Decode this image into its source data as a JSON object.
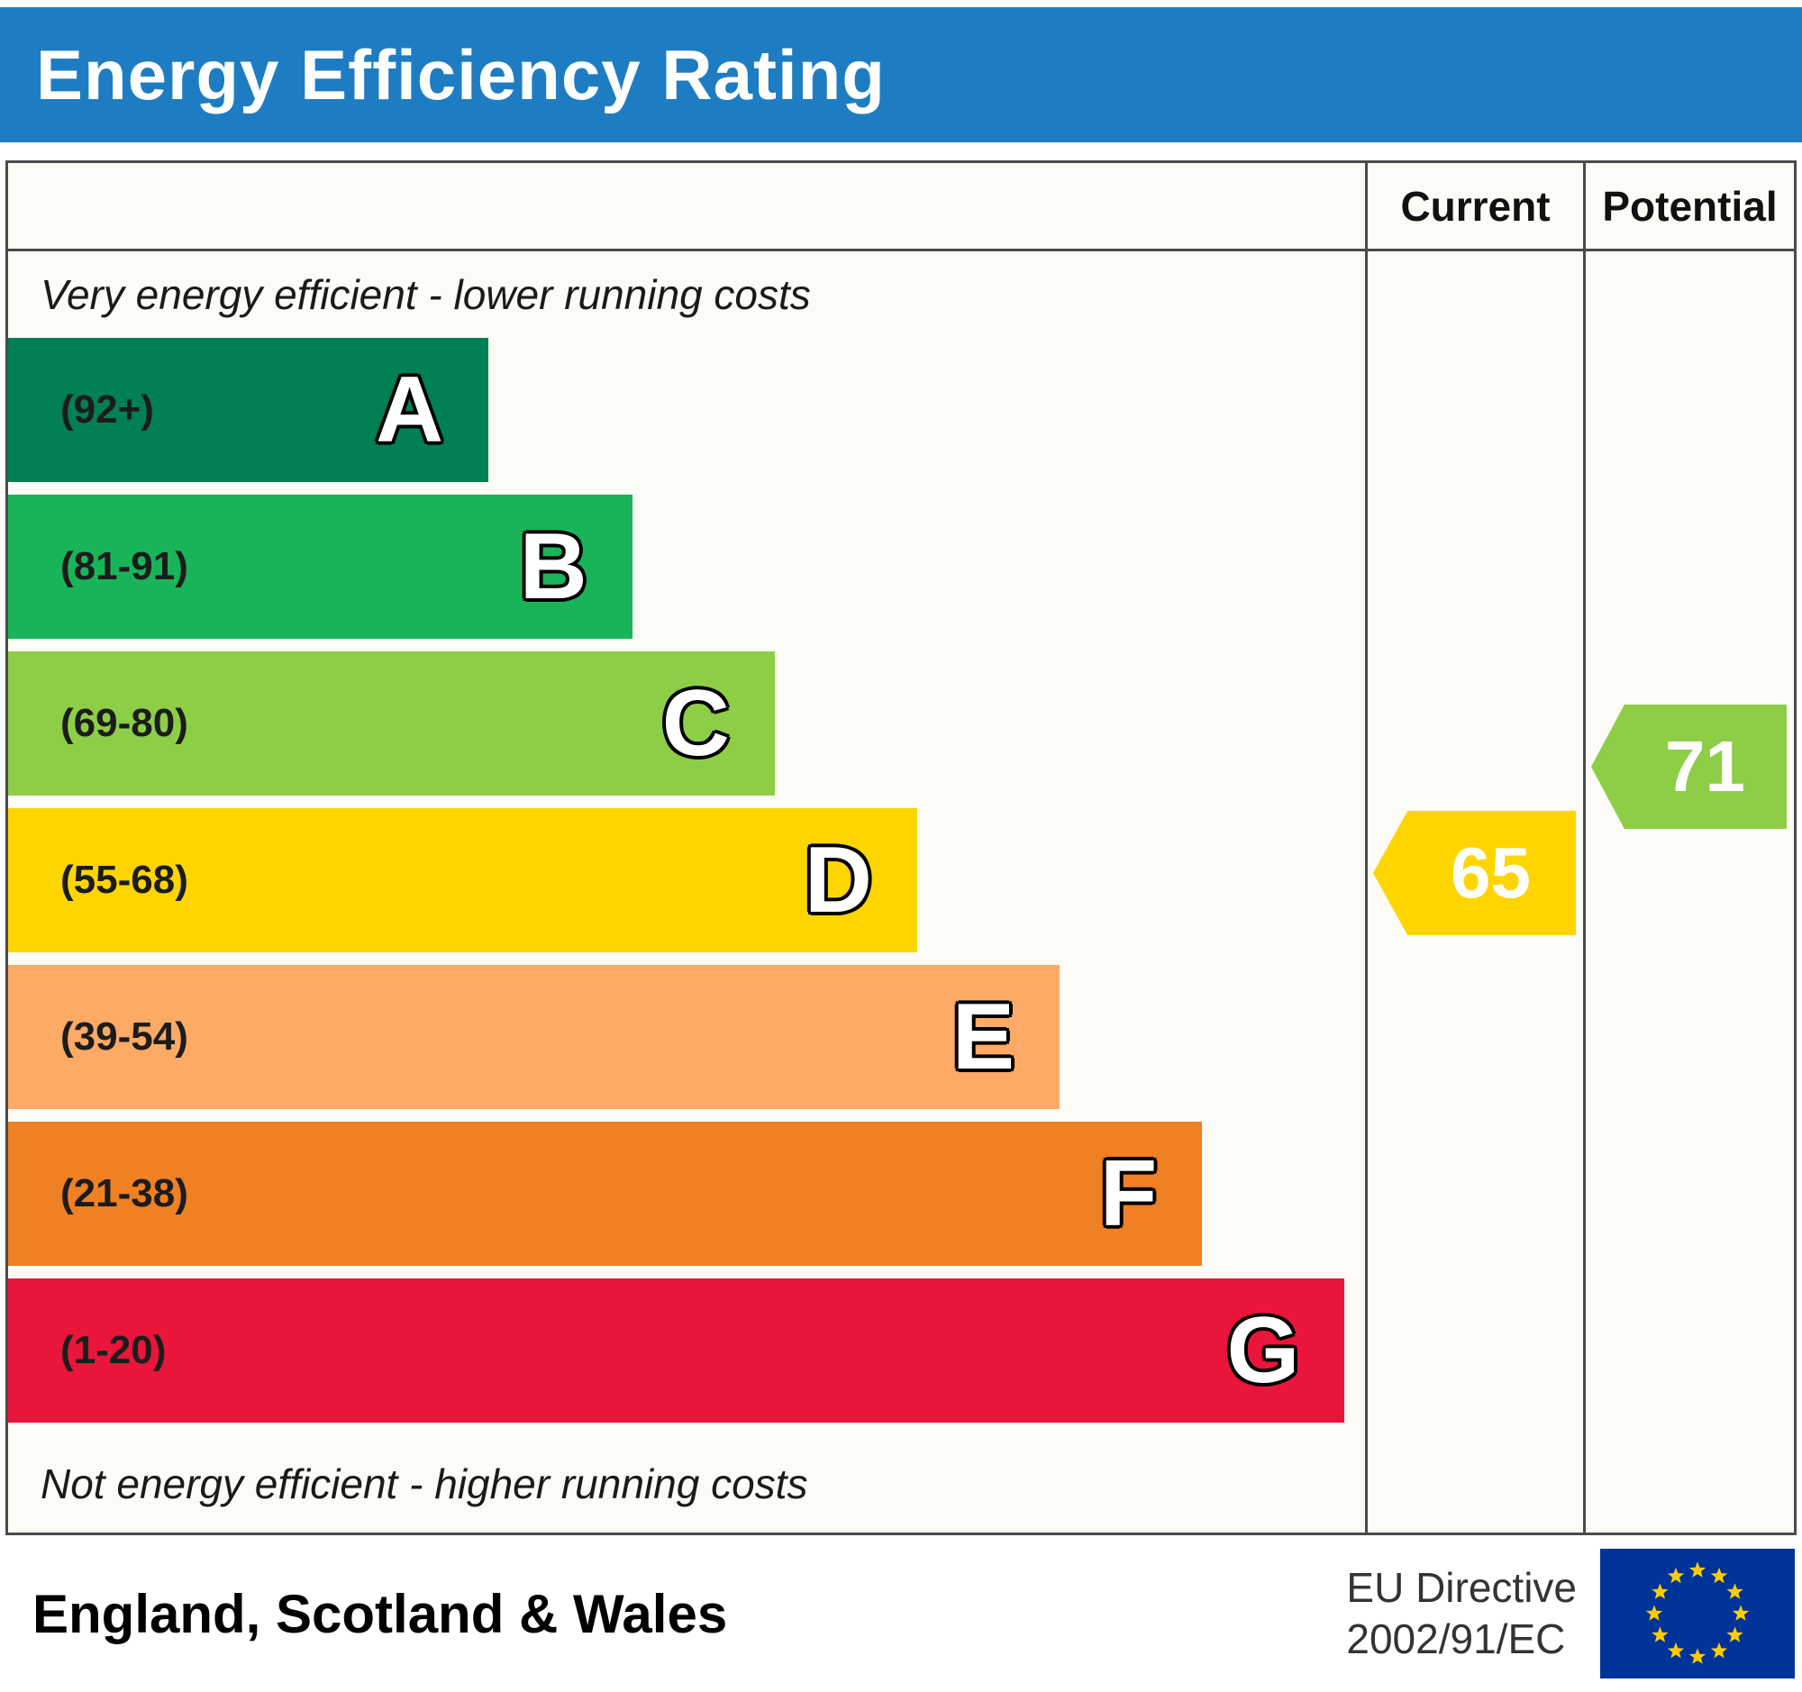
{
  "title": "Energy Efficiency Rating",
  "colors": {
    "title_bar": "#1e7dc2",
    "frame_border": "#4b4b4b"
  },
  "header": {
    "current_label": "Current",
    "potential_label": "Potential"
  },
  "notes": {
    "top": "Very energy efficient - lower running costs",
    "bottom": "Not energy efficient - higher running costs"
  },
  "footer": {
    "region": "England, Scotland & Wales",
    "directive_line1": "EU Directive",
    "directive_line2": "2002/91/EC",
    "eu_flag_icon": "eu-flag",
    "flag_colors": {
      "field": "#003399",
      "stars": "#ffcc00"
    }
  },
  "chart_data": {
    "type": "bar",
    "subtype": "epc-energy-efficiency-rating",
    "bands": [
      {
        "letter": "A",
        "range_label": "(92+)",
        "score_min": 92,
        "score_max": 100,
        "color": "#008054",
        "width_pct": 35.4
      },
      {
        "letter": "B",
        "range_label": "(81-91)",
        "score_min": 81,
        "score_max": 91,
        "color": "#19b459",
        "width_pct": 46.0
      },
      {
        "letter": "C",
        "range_label": "(69-80)",
        "score_min": 69,
        "score_max": 80,
        "color": "#8dce46",
        "width_pct": 56.5
      },
      {
        "letter": "D",
        "range_label": "(55-68)",
        "score_min": 55,
        "score_max": 68,
        "color": "#ffd500",
        "width_pct": 67.0
      },
      {
        "letter": "E",
        "range_label": "(39-54)",
        "score_min": 39,
        "score_max": 54,
        "color": "#fcaa65",
        "width_pct": 77.5
      },
      {
        "letter": "F",
        "range_label": "(21-38)",
        "score_min": 21,
        "score_max": 38,
        "color": "#ef8023",
        "width_pct": 88.0
      },
      {
        "letter": "G",
        "range_label": "(1-20)",
        "score_min": 1,
        "score_max": 20,
        "color": "#e9153b",
        "width_pct": 98.5
      }
    ],
    "current": {
      "value": 65,
      "band": "D",
      "color": "#ffd500",
      "pos_fraction": 0.45
    },
    "potential": {
      "value": 71,
      "band": "C",
      "color": "#8dce46",
      "pos_fraction": 0.8
    }
  }
}
